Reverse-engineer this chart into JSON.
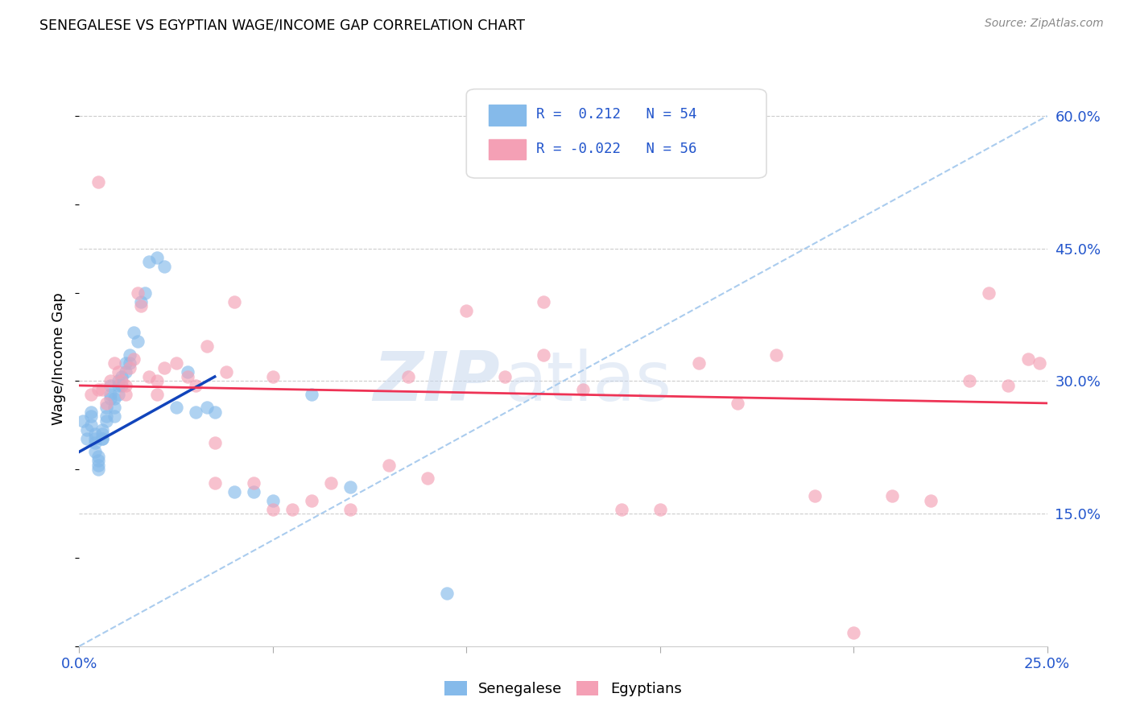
{
  "title": "SENEGALESE VS EGYPTIAN WAGE/INCOME GAP CORRELATION CHART",
  "source": "Source: ZipAtlas.com",
  "ylabel": "Wage/Income Gap",
  "legend_blue_label": "Senegalese",
  "legend_pink_label": "Egyptians",
  "legend_blue_R": " 0.212",
  "legend_blue_N": "54",
  "legend_pink_R": "-0.022",
  "legend_pink_N": "56",
  "blue_color": "#85BAEA",
  "pink_color": "#F4A0B5",
  "trendline_blue_color": "#1144BB",
  "trendline_pink_color": "#EE3355",
  "dashed_line_color": "#AACCEE",
  "xmin": 0.0,
  "xmax": 0.25,
  "ymin": 0.0,
  "ymax": 0.65,
  "ytick_vals": [
    0.15,
    0.3,
    0.45,
    0.6
  ],
  "ytick_labels": [
    "15.0%",
    "30.0%",
    "45.0%",
    "60.0%"
  ],
  "xtick_vals": [
    0.0,
    0.05,
    0.1,
    0.15,
    0.2,
    0.25
  ],
  "xtick_labels": [
    "0.0%",
    "",
    "",
    "",
    "",
    "25.0%"
  ],
  "blue_x": [
    0.001,
    0.002,
    0.002,
    0.003,
    0.003,
    0.003,
    0.004,
    0.004,
    0.004,
    0.004,
    0.005,
    0.005,
    0.005,
    0.005,
    0.006,
    0.006,
    0.006,
    0.006,
    0.007,
    0.007,
    0.007,
    0.008,
    0.008,
    0.008,
    0.009,
    0.009,
    0.009,
    0.01,
    0.01,
    0.01,
    0.011,
    0.011,
    0.012,
    0.012,
    0.013,
    0.013,
    0.014,
    0.015,
    0.016,
    0.017,
    0.018,
    0.02,
    0.022,
    0.025,
    0.028,
    0.03,
    0.033,
    0.035,
    0.04,
    0.045,
    0.05,
    0.06,
    0.07,
    0.095
  ],
  "blue_y": [
    0.255,
    0.245,
    0.235,
    0.265,
    0.26,
    0.25,
    0.24,
    0.235,
    0.23,
    0.22,
    0.215,
    0.21,
    0.205,
    0.2,
    0.235,
    0.24,
    0.245,
    0.235,
    0.26,
    0.255,
    0.27,
    0.285,
    0.295,
    0.28,
    0.28,
    0.27,
    0.26,
    0.3,
    0.295,
    0.285,
    0.295,
    0.305,
    0.32,
    0.31,
    0.33,
    0.32,
    0.355,
    0.345,
    0.39,
    0.4,
    0.435,
    0.44,
    0.43,
    0.27,
    0.31,
    0.265,
    0.27,
    0.265,
    0.175,
    0.175,
    0.165,
    0.285,
    0.18,
    0.06
  ],
  "pink_x": [
    0.003,
    0.005,
    0.006,
    0.007,
    0.008,
    0.009,
    0.01,
    0.011,
    0.012,
    0.013,
    0.014,
    0.015,
    0.016,
    0.018,
    0.02,
    0.022,
    0.025,
    0.028,
    0.03,
    0.033,
    0.035,
    0.038,
    0.04,
    0.045,
    0.05,
    0.055,
    0.06,
    0.065,
    0.07,
    0.08,
    0.085,
    0.09,
    0.1,
    0.11,
    0.12,
    0.13,
    0.14,
    0.15,
    0.16,
    0.17,
    0.18,
    0.19,
    0.2,
    0.21,
    0.22,
    0.23,
    0.235,
    0.24,
    0.245,
    0.248,
    0.005,
    0.012,
    0.02,
    0.035,
    0.05,
    0.12
  ],
  "pink_y": [
    0.285,
    0.525,
    0.29,
    0.275,
    0.3,
    0.32,
    0.31,
    0.3,
    0.295,
    0.315,
    0.325,
    0.4,
    0.385,
    0.305,
    0.3,
    0.315,
    0.32,
    0.305,
    0.295,
    0.34,
    0.23,
    0.31,
    0.39,
    0.185,
    0.305,
    0.155,
    0.165,
    0.185,
    0.155,
    0.205,
    0.305,
    0.19,
    0.38,
    0.305,
    0.33,
    0.29,
    0.155,
    0.155,
    0.32,
    0.275,
    0.33,
    0.17,
    0.015,
    0.17,
    0.165,
    0.3,
    0.4,
    0.295,
    0.325,
    0.32,
    0.29,
    0.285,
    0.285,
    0.185,
    0.155,
    0.39
  ],
  "blue_trendline_x0": 0.0,
  "blue_trendline_y0": 0.22,
  "blue_trendline_x1": 0.035,
  "blue_trendline_y1": 0.305,
  "pink_trendline_x0": 0.0,
  "pink_trendline_y0": 0.295,
  "pink_trendline_x1": 0.25,
  "pink_trendline_y1": 0.275
}
